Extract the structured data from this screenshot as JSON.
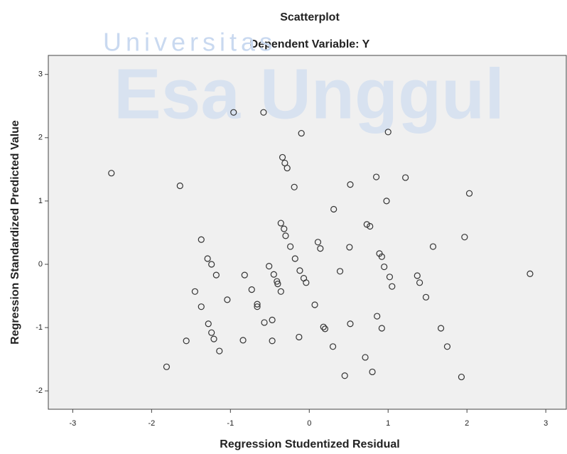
{
  "chart_data": {
    "type": "scatter",
    "title": "Scatterplot",
    "subtitle": "Dependent Variable: Y",
    "x_label": "Regression Studentized Residual",
    "y_label": "Regression Standardized Predicted Value",
    "annotations": [
      "Universitas",
      "Esa Unggul"
    ],
    "color": "#333333",
    "x": [
      -2.51,
      -1.64,
      -0.96,
      -0.58,
      -0.1,
      1.0,
      -0.34,
      -0.31,
      -0.28,
      -0.19,
      0.52,
      0.85,
      1.22,
      2.03,
      0.98,
      0.31,
      -0.36,
      -0.32,
      -0.3,
      -0.24,
      0.11,
      0.14,
      0.73,
      0.77,
      0.51,
      0.89,
      0.92,
      -1.37,
      -1.29,
      -1.24,
      -1.18,
      -0.82,
      -0.51,
      -0.45,
      -0.41,
      -0.4,
      -0.36,
      -0.73,
      -0.66,
      -0.66,
      -1.04,
      -1.45,
      -1.37,
      -0.18,
      -0.12,
      -0.07,
      -0.04,
      0.39,
      0.95,
      1.02,
      1.05,
      1.37,
      1.4,
      1.48,
      1.57,
      1.97,
      2.8,
      0.07,
      -0.47,
      -0.57,
      0.86,
      0.52,
      0.18,
      0.2,
      -0.13,
      0.92,
      1.67,
      -1.28,
      -1.24,
      -1.21,
      -1.56,
      -0.84,
      -0.47,
      -1.14,
      0.3,
      0.71,
      1.75,
      -1.81,
      0.45,
      0.8,
      1.93
    ],
    "values": [
      1.44,
      1.24,
      2.4,
      2.4,
      2.07,
      2.09,
      1.69,
      1.6,
      1.52,
      1.22,
      1.26,
      1.38,
      1.37,
      1.12,
      1.0,
      0.87,
      0.65,
      0.56,
      0.45,
      0.28,
      0.35,
      0.25,
      0.63,
      0.6,
      0.27,
      0.17,
      0.12,
      0.39,
      0.09,
      0.0,
      -0.17,
      -0.17,
      -0.03,
      -0.16,
      -0.27,
      -0.31,
      -0.43,
      -0.4,
      -0.63,
      -0.67,
      -0.56,
      -0.43,
      -0.67,
      0.09,
      -0.1,
      -0.22,
      -0.29,
      -0.11,
      -0.04,
      -0.2,
      -0.35,
      -0.18,
      -0.29,
      -0.52,
      0.28,
      0.43,
      -0.15,
      -0.64,
      -0.88,
      -0.92,
      -0.82,
      -0.94,
      -0.99,
      -1.02,
      -1.15,
      -1.01,
      -1.01,
      -0.94,
      -1.08,
      -1.18,
      -1.21,
      -1.2,
      -1.21,
      -1.37,
      -1.3,
      -1.47,
      -1.3,
      -1.62,
      -1.76,
      -1.7,
      -1.78
    ],
    "xlim": [
      -3.31,
      3.26
    ],
    "ylim": [
      -2.29,
      3.3
    ],
    "xticks": [
      -3,
      -2,
      -1,
      0,
      1,
      2,
      3
    ],
    "yticks": [
      -2,
      -1,
      0,
      1,
      2,
      3
    ]
  }
}
